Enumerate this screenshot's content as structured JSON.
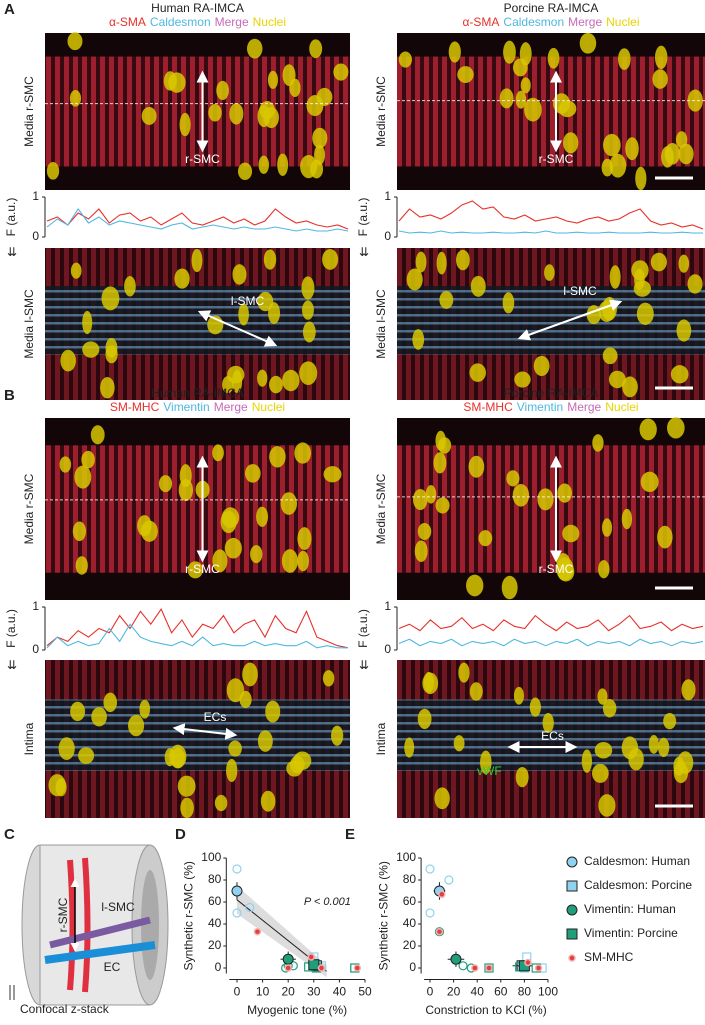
{
  "panel_a": {
    "label": "A",
    "columns": [
      {
        "title": "Human RA-IMCA",
        "stains": [
          {
            "text": "α-SMA",
            "color": "#e8302a"
          },
          {
            "text": "Caldesmon",
            "color": "#4fb8e0"
          },
          {
            "text": "Merge",
            "color": "#c86ab8"
          },
          {
            "text": "Nuclei",
            "color": "#e6d400"
          }
        ],
        "top_row": "Media r-SMC",
        "top_arrow": "r-SMC",
        "profile": {
          "ylabel": "F (a.u.)",
          "ylim": [
            0,
            1
          ],
          "yticks": [
            0,
            1
          ],
          "series": [
            {
              "color": "#e8302a",
              "values": [
                0.4,
                0.5,
                0.3,
                0.6,
                0.45,
                0.7,
                0.35,
                0.55,
                0.6,
                0.4,
                0.5,
                0.3,
                0.45,
                0.6,
                0.35,
                0.3,
                0.4,
                0.5,
                0.35,
                0.45,
                0.3,
                0.4,
                0.7,
                0.5,
                0.35,
                0.4,
                0.3,
                0.25,
                0.3,
                0.2
              ]
            },
            {
              "color": "#4fb8e0",
              "values": [
                0.25,
                0.45,
                0.3,
                0.7,
                0.35,
                0.5,
                0.3,
                0.4,
                0.35,
                0.3,
                0.25,
                0.2,
                0.3,
                0.35,
                0.2,
                0.25,
                0.3,
                0.25,
                0.2,
                0.25,
                0.2,
                0.2,
                0.25,
                0.2,
                0.15,
                0.2,
                0.15,
                0.15,
                0.2,
                0.15
              ]
            }
          ]
        },
        "bottom_row": "Media l-SMC",
        "bottom_arrow": "l-SMC"
      },
      {
        "title": "Porcine RA-IMCA",
        "stains": [
          {
            "text": "α-SMA",
            "color": "#e8302a"
          },
          {
            "text": "Caldesmon",
            "color": "#4fb8e0"
          },
          {
            "text": "Merge",
            "color": "#c86ab8"
          },
          {
            "text": "Nuclei",
            "color": "#e6d400"
          }
        ],
        "top_row": "Media r-SMC",
        "top_arrow": "r-SMC",
        "profile": {
          "ylabel": "F (a.u.)",
          "ylim": [
            0,
            1
          ],
          "yticks": [
            0,
            1
          ],
          "series": [
            {
              "color": "#e8302a",
              "values": [
                0.4,
                0.7,
                0.5,
                0.55,
                0.45,
                0.6,
                0.8,
                0.9,
                0.7,
                0.75,
                0.5,
                0.45,
                0.55,
                0.4,
                0.45,
                0.5,
                0.4,
                0.35,
                0.45,
                0.5,
                0.4,
                0.45,
                0.6,
                0.7,
                0.4,
                0.3,
                0.35,
                0.25,
                0.3,
                0.2
              ]
            },
            {
              "color": "#4fb8e0",
              "values": [
                0.15,
                0.1,
                0.12,
                0.1,
                0.15,
                0.1,
                0.12,
                0.1,
                0.1,
                0.12,
                0.1,
                0.1,
                0.12,
                0.1,
                0.15,
                0.1,
                0.1,
                0.12,
                0.1,
                0.1,
                0.12,
                0.1,
                0.1,
                0.1,
                0.12,
                0.1,
                0.1,
                0.12,
                0.1,
                0.1
              ]
            }
          ]
        },
        "bottom_row": "Media l-SMC",
        "bottom_arrow": "l-SMC"
      }
    ]
  },
  "panel_b": {
    "label": "B",
    "columns": [
      {
        "title": "Human RA-IMCA",
        "stains": [
          {
            "text": "SM-MHC",
            "color": "#e8302a"
          },
          {
            "text": "Vimentin",
            "color": "#4fb8e0"
          },
          {
            "text": "Merge",
            "color": "#c86ab8"
          },
          {
            "text": "Nuclei",
            "color": "#e6d400"
          }
        ],
        "top_row": "Media r-SMC",
        "top_arrow": "r-SMC",
        "profile": {
          "ylabel": "F (a.u.)",
          "ylim": [
            0,
            1
          ],
          "yticks": [
            0,
            1
          ],
          "series": [
            {
              "color": "#e8302a",
              "values": [
                0.1,
                0.3,
                0.2,
                0.45,
                0.3,
                0.5,
                0.4,
                0.8,
                0.5,
                0.9,
                0.6,
                0.95,
                0.4,
                0.7,
                0.3,
                0.6,
                0.5,
                0.8,
                0.4,
                0.6,
                0.7,
                0.3,
                0.8,
                0.5,
                0.4,
                0.9,
                0.3,
                0.2,
                0.1,
                0.05
              ]
            },
            {
              "color": "#4fb8e0",
              "values": [
                0.05,
                0.3,
                0.1,
                0.2,
                0.1,
                0.15,
                0.5,
                0.2,
                0.6,
                0.3,
                0.2,
                0.15,
                0.1,
                0.2,
                0.1,
                0.3,
                0.1,
                0.15,
                0.1,
                0.1,
                0.2,
                0.1,
                0.15,
                0.1,
                0.1,
                0.2,
                0.05,
                0.1,
                0.05,
                0.05
              ]
            }
          ]
        },
        "bottom_row": "Intima",
        "bottom_arrow": "ECs"
      },
      {
        "title": "Porcine RA-IMCA",
        "stains": [
          {
            "text": "SM-MHC",
            "color": "#e8302a"
          },
          {
            "text": "Vimentin",
            "color": "#4fb8e0"
          },
          {
            "text": "Merge",
            "color": "#c86ab8"
          },
          {
            "text": "Nuclei",
            "color": "#e6d400"
          }
        ],
        "top_row": "Media r-SMC",
        "top_arrow": "r-SMC",
        "profile": {
          "ylabel": "F (a.u.)",
          "ylim": [
            0,
            1
          ],
          "yticks": [
            0,
            1
          ],
          "series": [
            {
              "color": "#e8302a",
              "values": [
                0.5,
                0.6,
                0.45,
                0.7,
                0.5,
                0.55,
                0.75,
                0.5,
                0.6,
                0.45,
                0.7,
                0.55,
                0.5,
                0.8,
                0.6,
                0.45,
                0.65,
                0.5,
                0.55,
                0.7,
                0.45,
                0.6,
                0.8,
                0.5,
                0.55,
                0.65,
                0.45,
                0.6,
                0.5,
                0.55
              ]
            },
            {
              "color": "#4fb8e0",
              "values": [
                0.15,
                0.25,
                0.1,
                0.2,
                0.15,
                0.25,
                0.1,
                0.2,
                0.15,
                0.2,
                0.1,
                0.25,
                0.15,
                0.2,
                0.1,
                0.2,
                0.15,
                0.25,
                0.1,
                0.2,
                0.15,
                0.2,
                0.1,
                0.25,
                0.15,
                0.2,
                0.1,
                0.2,
                0.15,
                0.2
              ]
            }
          ]
        },
        "bottom_row": "Intima",
        "bottom_arrow": "ECs",
        "extra_label": "vWF"
      }
    ]
  },
  "panel_c": {
    "label": "C",
    "labels": [
      "r-SMC",
      "l-SMC",
      "EC"
    ],
    "caption": "Confocal z-stack"
  },
  "groups": [
    {
      "name": "Caldesmon: Human",
      "color": "#8fd3f0",
      "shape": "circle"
    },
    {
      "name": "Caldesmon: Porcine",
      "color": "#8fd3f0",
      "shape": "square"
    },
    {
      "name": "Vimentin: Human",
      "color": "#1f9e7a",
      "shape": "circle"
    },
    {
      "name": "Vimentin: Porcine",
      "color": "#1f9e7a",
      "shape": "square"
    },
    {
      "name": "SM-MHC",
      "color": "#e04040",
      "shape": "dot"
    }
  ],
  "panel_d": {
    "label": "D",
    "xlabel": "Myogenic tone (%)",
    "ylabel": "Synthetic r-SMC (%)",
    "xlim": [
      -3,
      50
    ],
    "xticks": [
      0,
      10,
      20,
      30,
      40,
      50
    ],
    "ylim": [
      -5,
      100
    ],
    "yticks": [
      0,
      20,
      40,
      60,
      80,
      100
    ],
    "annotation": "P < 0.001",
    "fit": {
      "x": [
        0,
        35
      ],
      "y": [
        62,
        -3
      ]
    },
    "data": [
      {
        "points": {
          "x": [
            0,
            0,
            5
          ],
          "y": [
            90,
            50,
            55
          ]
        },
        "mean": {
          "x": 0,
          "y": 70,
          "xerr": 1,
          "yerr": 8
        }
      },
      {
        "points": {
          "x": [
            30,
            33,
            46
          ],
          "y": [
            10,
            2,
            0
          ]
        },
        "mean": {
          "x": 31,
          "y": 2,
          "xerr": 3,
          "yerr": 2
        }
      },
      {
        "points": {
          "x": [
            20,
            22,
            19
          ],
          "y": [
            2,
            2,
            0
          ]
        },
        "mean": {
          "x": 20,
          "y": 8,
          "xerr": 3,
          "yerr": 7
        }
      },
      {
        "points": {
          "x": [
            31,
            28,
            46
          ],
          "y": [
            0,
            1,
            0
          ]
        },
        "mean": {
          "x": 30,
          "y": 3,
          "xerr": 2,
          "yerr": 2
        }
      },
      {
        "points": {
          "x": [
            8,
            20,
            29,
            33,
            47
          ],
          "y": [
            33,
            0,
            10,
            0,
            0
          ]
        }
      }
    ]
  },
  "panel_e": {
    "label": "E",
    "xlabel": "Constriction to KCl (%)",
    "ylabel": "Synthetic r-SMC (%)",
    "xlim": [
      -5,
      100
    ],
    "xticks": [
      0,
      20,
      40,
      60,
      80,
      100
    ],
    "ylim": [
      -5,
      100
    ],
    "yticks": [
      0,
      20,
      40,
      60,
      80,
      100
    ],
    "data": [
      {
        "points": {
          "x": [
            0,
            0,
            16
          ],
          "y": [
            90,
            50,
            80
          ]
        },
        "mean": {
          "x": 8,
          "y": 70,
          "xerr": 5,
          "yerr": 8
        }
      },
      {
        "points": {
          "x": [
            82,
            80,
            95
          ],
          "y": [
            10,
            0,
            0
          ]
        },
        "mean": {
          "x": 78,
          "y": 2,
          "xerr": 8,
          "yerr": 2
        }
      },
      {
        "points": {
          "x": [
            8,
            35,
            28
          ],
          "y": [
            33,
            0,
            2
          ]
        },
        "mean": {
          "x": 22,
          "y": 8,
          "xerr": 7,
          "yerr": 7
        }
      },
      {
        "points": {
          "x": [
            76,
            90,
            50
          ],
          "y": [
            1,
            0,
            0
          ]
        },
        "mean": {
          "x": 80,
          "y": 2,
          "xerr": 6,
          "yerr": 2
        }
      },
      {
        "points": {
          "x": [
            10,
            8,
            38,
            50,
            83,
            92
          ],
          "y": [
            67,
            33,
            0,
            0,
            5,
            0
          ]
        }
      }
    ]
  }
}
